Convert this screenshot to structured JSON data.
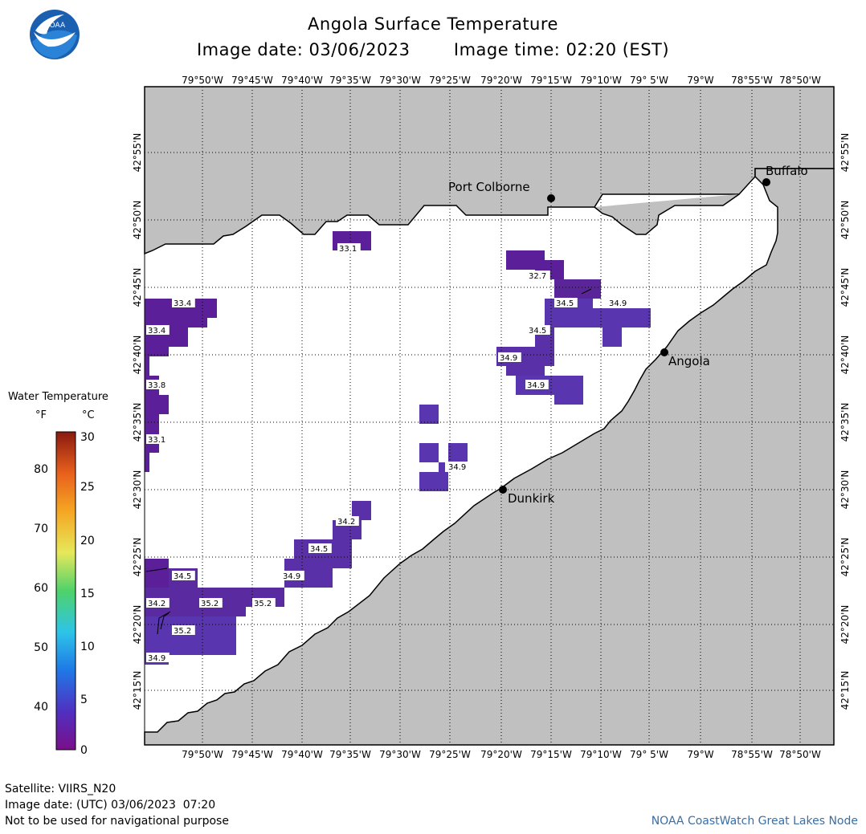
{
  "header": {
    "title": "Angola Surface Temperature",
    "date_label": "Image date: 03/06/2023",
    "time_label": "Image time: 02:20 (EST)"
  },
  "logo": {
    "text": "NOAA"
  },
  "colors": {
    "land": "#c0c0c0",
    "water": "#ffffff",
    "sst_dark": "#5b1f9a",
    "sst_mid": "#5a35b0"
  },
  "map": {
    "lon_ticks": [
      "79°50'W",
      "79°45'W",
      "79°40'W",
      "79°35'W",
      "79°30'W",
      "79°25'W",
      "79°20'W",
      "79°15'W",
      "79°10'W",
      "79° 5'W",
      "79°W",
      "78°55'W",
      "78°50'W"
    ],
    "lat_ticks": [
      "42°55'N",
      "42°50'N",
      "42°45'N",
      "42°40'N",
      "42°35'N",
      "42°30'N",
      "42°25'N",
      "42°20'N",
      "42°15'N"
    ],
    "cities": [
      {
        "name": "Port Colborne"
      },
      {
        "name": "Buffalo"
      },
      {
        "name": "Angola"
      },
      {
        "name": "Dunkirk"
      }
    ],
    "temp_labels": [
      "33.1",
      "32.7",
      "34.5",
      "34.9",
      "34.5",
      "34.9",
      "34.9",
      "33.4",
      "33.4",
      "33.8",
      "33.1",
      "34.9",
      "34.5",
      "34.9",
      "34.2",
      "34.5",
      "34.2",
      "35.2",
      "35.2",
      "35.2",
      "34.9"
    ]
  },
  "legend": {
    "title": "Water Temperature",
    "unit_f": "°F",
    "unit_c": "°C",
    "f_ticks": [
      "80",
      "70",
      "60",
      "50",
      "40"
    ],
    "c_ticks": [
      "30",
      "25",
      "20",
      "15",
      "10",
      "5",
      "0"
    ]
  },
  "footer": {
    "satellite": "Satellite: VIIRS_N20",
    "utc_date": "Image date: (UTC) 03/06/2023  07:20",
    "disclaimer": "Not to be used for navigational purpose",
    "credit": "NOAA CoastWatch Great Lakes Node"
  }
}
